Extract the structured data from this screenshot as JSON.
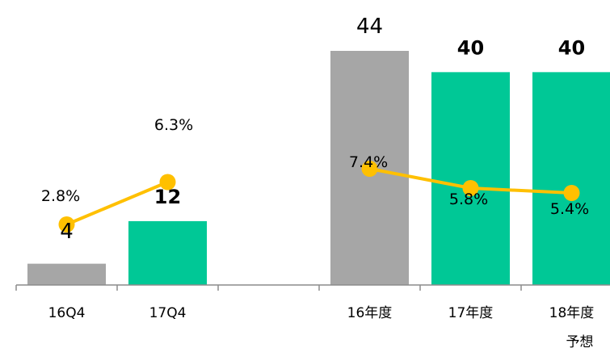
{
  "chart_data": {
    "type": "bar",
    "categories": [
      "16Q4",
      "17Q4",
      "",
      "16年度",
      "17年度",
      "18年度"
    ],
    "category_sublabels": [
      "",
      "",
      "",
      "",
      "",
      "予想"
    ],
    "values": [
      4,
      12,
      null,
      44,
      40,
      40
    ],
    "value_labels": [
      "4",
      "12",
      "",
      "44",
      "40",
      "40"
    ],
    "bar_colors": [
      "#a6a6a6",
      "#00c896",
      null,
      "#a6a6a6",
      "#00c896",
      "#00c896"
    ],
    "bold_labels": [
      false,
      true,
      false,
      false,
      true,
      true
    ],
    "ylim": [
      0,
      48
    ],
    "line_series": [
      {
        "values": [
          2.8,
          6.3
        ],
        "labels": [
          "2.8%",
          "6.3%"
        ],
        "category_index": [
          0,
          1
        ]
      },
      {
        "values": [
          7.4,
          5.8,
          5.4
        ],
        "labels": [
          "7.4%",
          "5.8%",
          "5.4%"
        ],
        "category_index": [
          3,
          4,
          5
        ]
      }
    ],
    "line_color": "#ffc000",
    "line_ylim": [
      0,
      10
    ]
  }
}
